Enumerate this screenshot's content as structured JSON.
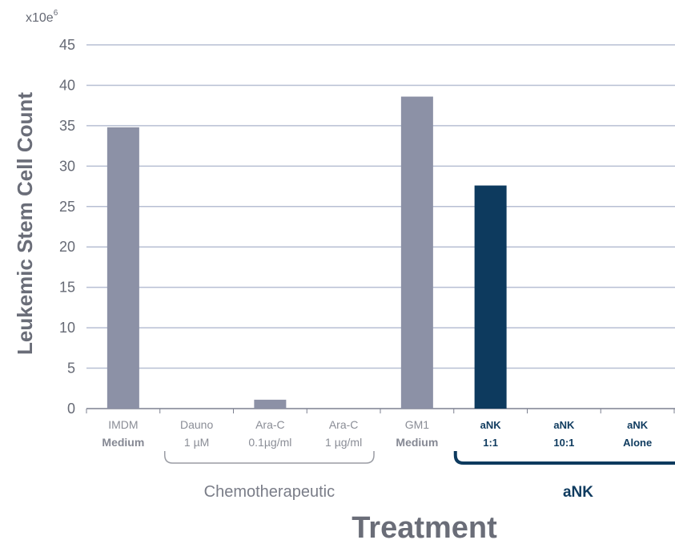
{
  "chart_data": {
    "type": "bar",
    "ylabel": "Leukemic Stem Cell Count",
    "xlabel": "Treatment",
    "y_unit": "x10e",
    "y_unit_exponent": "6",
    "ylim": [
      0,
      45
    ],
    "yticks": [
      0,
      5,
      10,
      15,
      20,
      25,
      30,
      35,
      40,
      45
    ],
    "grid": true,
    "categories": [
      {
        "line1": "IMDM",
        "line2": "Medium",
        "line2_bold": true,
        "group": "none"
      },
      {
        "line1": "Dauno",
        "line2": "1 µM",
        "line2_bold": false,
        "group": "chemo"
      },
      {
        "line1": "Ara-C",
        "line2": "0.1µg/ml",
        "line2_bold": false,
        "group": "chemo"
      },
      {
        "line1": "Ara-C",
        "line2": "1 µg/ml",
        "line2_bold": false,
        "group": "chemo"
      },
      {
        "line1": "GM1",
        "line2": "Medium",
        "line2_bold": true,
        "group": "none"
      },
      {
        "line1": "aNK",
        "line2": "1:1",
        "line2_bold": true,
        "group": "ank"
      },
      {
        "line1": "aNK",
        "line2": "10:1",
        "line2_bold": true,
        "group": "ank"
      },
      {
        "line1": "aNK",
        "line2": "Alone",
        "line2_bold": true,
        "group": "ank"
      }
    ],
    "values": [
      34.8,
      0,
      1.1,
      0,
      38.6,
      27.6,
      0,
      0
    ],
    "bar_colors": [
      "#8c91a6",
      "#8c91a6",
      "#8c91a6",
      "#8c91a6",
      "#8c91a6",
      "#0d3a5e",
      "#0d3a5e",
      "#0d3a5e"
    ],
    "groups": [
      {
        "label": "Chemotherapeutic",
        "from": 1,
        "to": 3,
        "color": "#9a9ca4"
      },
      {
        "label": "aNK",
        "from": 5,
        "to": 7,
        "color": "#0d3a5e"
      }
    ],
    "colors": {
      "grid": "#b7bfd3",
      "axis": "#7d8190",
      "control_bar": "#8c91a6",
      "ank_bar": "#0d3a5e"
    }
  }
}
